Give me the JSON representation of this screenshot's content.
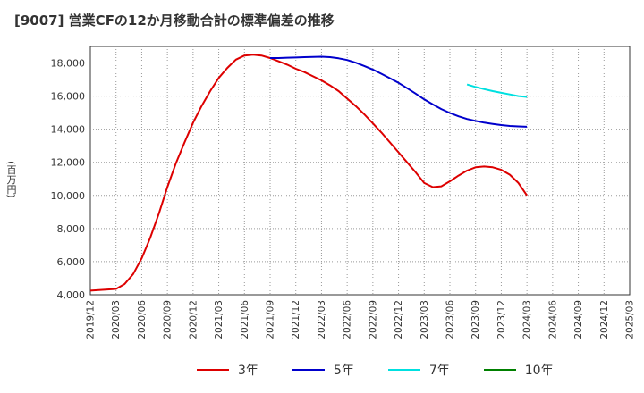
{
  "chart_data": {
    "type": "line",
    "title": "[9007]  営業CFの12か月移動合計の標準偏差の推移",
    "ylabel": "(百万円)",
    "xlabel": "",
    "ylim": [
      4000,
      19000
    ],
    "yticks": [
      4000,
      6000,
      8000,
      10000,
      12000,
      14000,
      16000,
      18000
    ],
    "ytick_labels": [
      "4,000",
      "6,000",
      "8,000",
      "10,000",
      "12,000",
      "14,000",
      "16,000",
      "18,000"
    ],
    "x_ticks": [
      "2019/12",
      "2020/03",
      "2020/06",
      "2020/09",
      "2020/12",
      "2021/03",
      "2021/06",
      "2021/09",
      "2021/12",
      "2022/03",
      "2022/06",
      "2022/09",
      "2022/12",
      "2023/03",
      "2023/06",
      "2023/09",
      "2023/12",
      "2024/03",
      "2024/06",
      "2024/09",
      "2024/12",
      "2025/03"
    ],
    "grid": true,
    "legend_position": "bottom",
    "series": [
      {
        "name": "3年",
        "color": "#dd0000",
        "x": [
          "2019/12",
          "2020/01",
          "2020/02",
          "2020/03",
          "2020/04",
          "2020/05",
          "2020/06",
          "2020/07",
          "2020/08",
          "2020/09",
          "2020/10",
          "2020/11",
          "2020/12",
          "2021/01",
          "2021/02",
          "2021/03",
          "2021/04",
          "2021/05",
          "2021/06",
          "2021/07",
          "2021/08",
          "2021/09",
          "2021/10",
          "2021/11",
          "2021/12",
          "2022/01",
          "2022/02",
          "2022/03",
          "2022/04",
          "2022/05",
          "2022/06",
          "2022/07",
          "2022/08",
          "2022/09",
          "2022/10",
          "2022/11",
          "2022/12",
          "2023/01",
          "2023/02",
          "2023/03",
          "2023/04",
          "2023/05",
          "2023/06",
          "2023/07",
          "2023/08",
          "2023/09",
          "2023/10",
          "2023/11",
          "2023/12",
          "2024/01",
          "2024/02",
          "2024/03"
        ],
        "values": [
          4250,
          4280,
          4320,
          4350,
          4650,
          5250,
          6200,
          7450,
          8900,
          10500,
          11950,
          13200,
          14400,
          15400,
          16300,
          17100,
          17700,
          18200,
          18450,
          18500,
          18450,
          18300,
          18100,
          17900,
          17650,
          17450,
          17200,
          16950,
          16650,
          16300,
          15850,
          15400,
          14900,
          14350,
          13800,
          13200,
          12600,
          12000,
          11400,
          10750,
          10500,
          10550,
          10850,
          11200,
          11500,
          11700,
          11750,
          11700,
          11550,
          11250,
          10750,
          10000
        ]
      },
      {
        "name": "5年",
        "color": "#0000cc",
        "x": [
          "2021/09",
          "2021/10",
          "2021/11",
          "2021/12",
          "2022/01",
          "2022/02",
          "2022/03",
          "2022/04",
          "2022/05",
          "2022/06",
          "2022/07",
          "2022/08",
          "2022/09",
          "2022/10",
          "2022/11",
          "2022/12",
          "2023/01",
          "2023/02",
          "2023/03",
          "2023/04",
          "2023/05",
          "2023/06",
          "2023/07",
          "2023/08",
          "2023/09",
          "2023/10",
          "2023/11",
          "2023/12",
          "2024/01",
          "2024/02",
          "2024/03"
        ],
        "values": [
          18300,
          18300,
          18320,
          18330,
          18350,
          18370,
          18380,
          18350,
          18280,
          18180,
          18020,
          17820,
          17600,
          17350,
          17080,
          16800,
          16480,
          16150,
          15800,
          15500,
          15220,
          14980,
          14780,
          14620,
          14500,
          14400,
          14320,
          14250,
          14200,
          14170,
          14150
        ]
      },
      {
        "name": "7年",
        "color": "#00e0e0",
        "x": [
          "2023/08",
          "2023/09",
          "2023/10",
          "2023/11",
          "2023/12",
          "2024/01",
          "2024/02",
          "2024/03"
        ],
        "values": [
          16700,
          16550,
          16420,
          16300,
          16200,
          16100,
          16000,
          15950
        ]
      },
      {
        "name": "10年",
        "color": "#008000",
        "x": [],
        "values": []
      }
    ]
  }
}
